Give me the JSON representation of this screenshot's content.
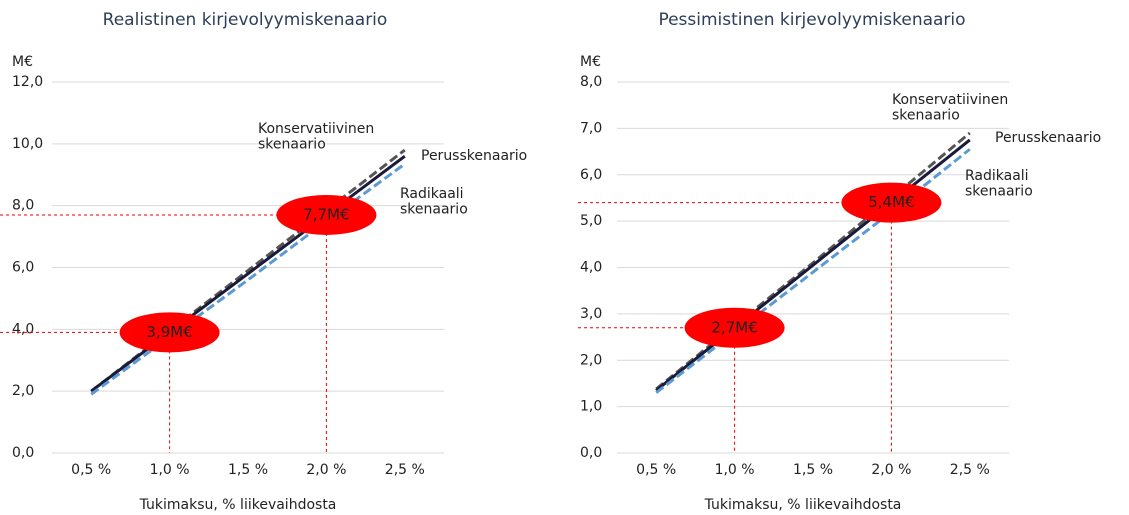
{
  "chart_data": [
    {
      "type": "line",
      "title": "Realistinen kirjevolyymiskenaario",
      "y_unit": "M€",
      "x_label": "Tukimaksu, % liikevaihdosta",
      "categories": [
        "0,5 %",
        "1,0 %",
        "1,5 %",
        "2,0 %",
        "2,5 %"
      ],
      "ylim": [
        0,
        12
      ],
      "yticks": [
        {
          "value": 0,
          "label": "0,0"
        },
        {
          "value": 2,
          "label": "2,0"
        },
        {
          "value": 4,
          "label": "4,0"
        },
        {
          "value": 6,
          "label": "6,0"
        },
        {
          "value": 8,
          "label": "8,0"
        },
        {
          "value": 10,
          "label": "10,0"
        },
        {
          "value": 12,
          "label": "12,0"
        }
      ],
      "grid": true,
      "series": [
        {
          "name": "Konservatiivinen skenaario",
          "color": "#555555",
          "dash": true,
          "values": [
            2.0,
            3.95,
            5.9,
            7.85,
            9.8
          ]
        },
        {
          "name": "Perusskenaario",
          "color": "#1a1a3a",
          "dash": false,
          "values": [
            2.0,
            3.9,
            5.8,
            7.7,
            9.6
          ]
        },
        {
          "name": "Radikaali skenaario",
          "color": "#5b9bd5",
          "dash": true,
          "values": [
            1.9,
            3.75,
            5.6,
            7.5,
            9.35
          ]
        }
      ],
      "annotations": [
        {
          "label": "3,9M€",
          "x": "1,0 %",
          "y": 3.9
        },
        {
          "label": "7,7M€",
          "x": "2,0 %",
          "y": 7.7
        }
      ]
    },
    {
      "type": "line",
      "title": "Pessimistinen kirjevolyymiskenaario",
      "y_unit": "M€",
      "x_label": "Tukimaksu, % liikevaihdosta",
      "categories": [
        "0,5 %",
        "1,0 %",
        "1,5 %",
        "2,0 %",
        "2,5 %"
      ],
      "ylim": [
        0,
        8
      ],
      "yticks": [
        {
          "value": 0,
          "label": "0,0"
        },
        {
          "value": 1,
          "label": "1,0"
        },
        {
          "value": 2,
          "label": "2,0"
        },
        {
          "value": 3,
          "label": "3,0"
        },
        {
          "value": 4,
          "label": "4,0"
        },
        {
          "value": 5,
          "label": "5,0"
        },
        {
          "value": 6,
          "label": "6,0"
        },
        {
          "value": 7,
          "label": "7,0"
        },
        {
          "value": 8,
          "label": "8,0"
        }
      ],
      "grid": true,
      "series": [
        {
          "name": "Konservatiivinen skenaario",
          "color": "#555555",
          "dash": true,
          "values": [
            1.38,
            2.75,
            4.1,
            5.5,
            6.9
          ]
        },
        {
          "name": "Perusskenaario",
          "color": "#1a1a3a",
          "dash": false,
          "values": [
            1.35,
            2.7,
            4.05,
            5.4,
            6.75
          ]
        },
        {
          "name": "Radikaali skenaario",
          "color": "#5b9bd5",
          "dash": true,
          "values": [
            1.3,
            2.6,
            3.9,
            5.2,
            6.55
          ]
        }
      ],
      "annotations": [
        {
          "label": "2,7M€",
          "x": "1,0 %",
          "y": 2.7
        },
        {
          "label": "5,4M€",
          "x": "2,0 %",
          "y": 5.4
        }
      ]
    }
  ]
}
